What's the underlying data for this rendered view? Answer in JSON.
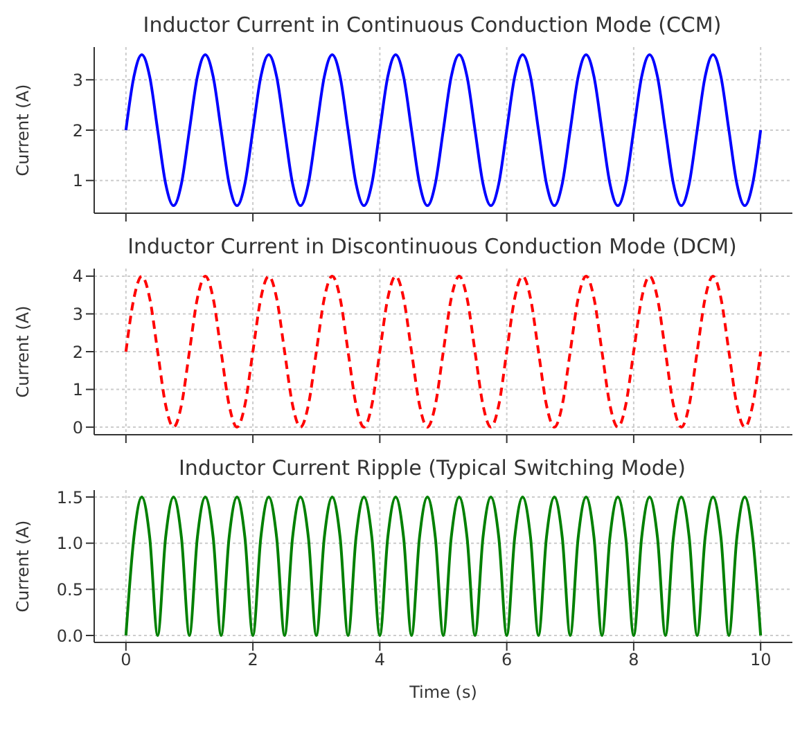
{
  "chart_data": [
    {
      "type": "line",
      "title": "Inductor Current in Continuous Conduction Mode (CCM)",
      "ylabel": "Current (A)",
      "x": [
        0,
        0.125,
        0.25,
        0.375,
        0.5,
        0.625,
        0.75,
        0.875,
        1,
        1.125,
        1.25,
        1.375,
        1.5,
        1.625,
        1.75,
        1.875,
        2,
        2.125,
        2.25,
        2.375,
        2.5,
        2.625,
        2.75,
        2.875,
        3,
        3.125,
        3.25,
        3.375,
        3.5,
        3.625,
        3.75,
        3.875,
        4,
        4.125,
        4.25,
        4.375,
        4.5,
        4.625,
        4.75,
        4.875,
        5,
        5.125,
        5.25,
        5.375,
        5.5,
        5.625,
        5.75,
        5.875,
        6,
        6.125,
        6.25,
        6.375,
        6.5,
        6.625,
        6.75,
        6.875,
        7,
        7.125,
        7.25,
        7.375,
        7.5,
        7.625,
        7.75,
        7.875,
        8,
        8.125,
        8.25,
        8.375,
        8.5,
        8.625,
        8.75,
        8.875,
        9,
        9.125,
        9.25,
        9.375,
        9.5,
        9.625,
        9.75,
        9.875,
        10
      ],
      "series": [
        {
          "color": "#0000ff",
          "values": [
            2,
            3.06,
            3.5,
            3.06,
            2,
            0.94,
            0.5,
            0.94,
            2,
            3.06,
            3.5,
            3.06,
            2,
            0.94,
            0.5,
            0.94,
            2,
            3.06,
            3.5,
            3.06,
            2,
            0.94,
            0.5,
            0.94,
            2,
            3.06,
            3.5,
            3.06,
            2,
            0.94,
            0.5,
            0.94,
            2,
            3.06,
            3.5,
            3.06,
            2,
            0.94,
            0.5,
            0.94,
            2,
            3.06,
            3.5,
            3.06,
            2,
            0.94,
            0.5,
            0.94,
            2,
            3.06,
            3.5,
            3.06,
            2,
            0.94,
            0.5,
            0.94,
            2,
            3.06,
            3.5,
            3.06,
            2,
            0.94,
            0.5,
            0.94,
            2,
            3.06,
            3.5,
            3.06,
            2,
            0.94,
            0.5,
            0.94,
            2,
            3.06,
            3.5,
            3.06,
            2,
            0.94,
            0.5,
            0.94,
            2
          ]
        }
      ],
      "xlim": [
        -0.5,
        10.5
      ],
      "xticks": [
        0,
        2,
        4,
        6,
        8,
        10
      ],
      "ylim": [
        0.35,
        3.65
      ],
      "yticks": [
        1,
        2,
        3
      ],
      "grid": true,
      "line_style": "solid",
      "tick_labels": "y"
    },
    {
      "type": "line",
      "title": "Inductor Current in Discontinuous Conduction Mode (DCM)",
      "ylabel": "Current (A)",
      "x": [
        0,
        0.125,
        0.25,
        0.375,
        0.5,
        0.625,
        0.75,
        0.875,
        1,
        1.125,
        1.25,
        1.375,
        1.5,
        1.625,
        1.75,
        1.875,
        2,
        2.125,
        2.25,
        2.375,
        2.5,
        2.625,
        2.75,
        2.875,
        3,
        3.125,
        3.25,
        3.375,
        3.5,
        3.625,
        3.75,
        3.875,
        4,
        4.125,
        4.25,
        4.375,
        4.5,
        4.625,
        4.75,
        4.875,
        5,
        5.125,
        5.25,
        5.375,
        5.5,
        5.625,
        5.75,
        5.875,
        6,
        6.125,
        6.25,
        6.375,
        6.5,
        6.625,
        6.75,
        6.875,
        7,
        7.125,
        7.25,
        7.375,
        7.5,
        7.625,
        7.75,
        7.875,
        8,
        8.125,
        8.25,
        8.375,
        8.5,
        8.625,
        8.75,
        8.875,
        9,
        9.125,
        9.25,
        9.375,
        9.5,
        9.625,
        9.75,
        9.875,
        10
      ],
      "series": [
        {
          "color": "#ff0000",
          "values": [
            2,
            3.41,
            4,
            3.41,
            2,
            0.59,
            0,
            0.59,
            2,
            3.41,
            4,
            3.41,
            2,
            0.59,
            0,
            0.59,
            2,
            3.41,
            4,
            3.41,
            2,
            0.59,
            0,
            0.59,
            2,
            3.41,
            4,
            3.41,
            2,
            0.59,
            0,
            0.59,
            2,
            3.41,
            4,
            3.41,
            2,
            0.59,
            0,
            0.59,
            2,
            3.41,
            4,
            3.41,
            2,
            0.59,
            0,
            0.59,
            2,
            3.41,
            4,
            3.41,
            2,
            0.59,
            0,
            0.59,
            2,
            3.41,
            4,
            3.41,
            2,
            0.59,
            0,
            0.59,
            2,
            3.41,
            4,
            3.41,
            2,
            0.59,
            0,
            0.59,
            2,
            3.41,
            4,
            3.41,
            2,
            0.59,
            0,
            0.59,
            2
          ]
        }
      ],
      "xlim": [
        -0.5,
        10.5
      ],
      "xticks": [
        0,
        2,
        4,
        6,
        8,
        10
      ],
      "ylim": [
        -0.2,
        4.2
      ],
      "yticks": [
        0,
        1,
        2,
        3,
        4
      ],
      "grid": true,
      "line_style": "dashed",
      "tick_labels": "y"
    },
    {
      "type": "line",
      "title": "Inductor Current Ripple (Typical Switching Mode)",
      "xlabel": "Time (s)",
      "ylabel": "Current (A)",
      "x": [
        0,
        0.125,
        0.25,
        0.375,
        0.5,
        0.625,
        0.75,
        0.875,
        1,
        1.125,
        1.25,
        1.375,
        1.5,
        1.625,
        1.75,
        1.875,
        2,
        2.125,
        2.25,
        2.375,
        2.5,
        2.625,
        2.75,
        2.875,
        3,
        3.125,
        3.25,
        3.375,
        3.5,
        3.625,
        3.75,
        3.875,
        4,
        4.125,
        4.25,
        4.375,
        4.5,
        4.625,
        4.75,
        4.875,
        5,
        5.125,
        5.25,
        5.375,
        5.5,
        5.625,
        5.75,
        5.875,
        6,
        6.125,
        6.25,
        6.375,
        6.5,
        6.625,
        6.75,
        6.875,
        7,
        7.125,
        7.25,
        7.375,
        7.5,
        7.625,
        7.75,
        7.875,
        8,
        8.125,
        8.25,
        8.375,
        8.5,
        8.625,
        8.75,
        8.875,
        9,
        9.125,
        9.25,
        9.375,
        9.5,
        9.625,
        9.75,
        9.875,
        10
      ],
      "series": [
        {
          "color": "#008000",
          "values": [
            0,
            1.06,
            1.5,
            1.06,
            0,
            1.06,
            1.5,
            1.06,
            0,
            1.06,
            1.5,
            1.06,
            0,
            1.06,
            1.5,
            1.06,
            0,
            1.06,
            1.5,
            1.06,
            0,
            1.06,
            1.5,
            1.06,
            0,
            1.06,
            1.5,
            1.06,
            0,
            1.06,
            1.5,
            1.06,
            0,
            1.06,
            1.5,
            1.06,
            0,
            1.06,
            1.5,
            1.06,
            0,
            1.06,
            1.5,
            1.06,
            0,
            1.06,
            1.5,
            1.06,
            0,
            1.06,
            1.5,
            1.06,
            0,
            1.06,
            1.5,
            1.06,
            0,
            1.06,
            1.5,
            1.06,
            0,
            1.06,
            1.5,
            1.06,
            0,
            1.06,
            1.5,
            1.06,
            0,
            1.06,
            1.5,
            1.06,
            0,
            1.06,
            1.5,
            1.06,
            0,
            1.06,
            1.5,
            1.06,
            0
          ]
        }
      ],
      "xlim": [
        -0.5,
        10.5
      ],
      "xticks": [
        0,
        2,
        4,
        6,
        8,
        10
      ],
      "ylim": [
        -0.075,
        1.575
      ],
      "yticks": [
        {
          "value": 0,
          "label": "0.0"
        },
        {
          "value": 0.5,
          "label": "0.5"
        },
        {
          "value": 1,
          "label": "1.0"
        },
        {
          "value": 1.5,
          "label": "1.5"
        }
      ],
      "grid": true,
      "line_style": "solid"
    }
  ]
}
